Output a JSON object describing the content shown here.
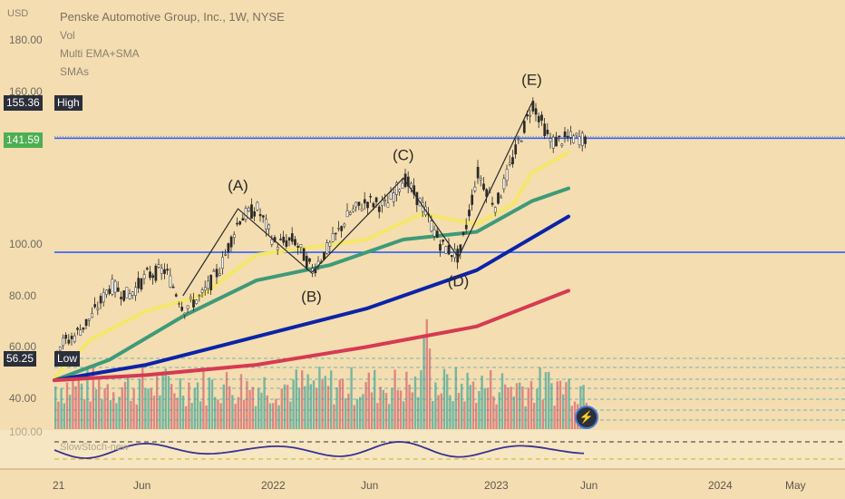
{
  "header": {
    "currency": "USD",
    "title": "Penske Automotive Group, Inc., 1W, NYSE",
    "indicators": [
      "Vol",
      "Multi EMA+SMA",
      "SMAs"
    ]
  },
  "price_tags": {
    "high_value": "155.36",
    "high_label": "High",
    "low_value": "56.25",
    "low_label": "Low",
    "last_value": "141.59"
  },
  "oscillator": {
    "label": "SlowStoch-new",
    "scale_label": "100.00"
  },
  "icons": {
    "replay": "bolt-icon"
  },
  "colors": {
    "background": "#f4ddb0",
    "ema_fast": "#f5e76a",
    "ema_mid": "#3e9a78",
    "sma_100": "#0b23a8",
    "sma_200": "#d63a52",
    "horizontal_line": "#2962ff",
    "wave_lines": "#2a2a2a",
    "oscillator": "#3a3290",
    "volume_up": "#4fa89a",
    "volume_down": "#d86a72"
  },
  "chart_data": {
    "type": "candlestick",
    "title": "Penske Automotive Group, Inc., 1W, NYSE",
    "ylabel": "USD",
    "ylim": [
      30,
      190
    ],
    "y_ticks": [
      "180.00",
      "160.00",
      "100.00",
      "80.00",
      "60.00",
      "40.00"
    ],
    "x_ticks": [
      "21",
      "Jun",
      "2022",
      "Jun",
      "2023",
      "Jun",
      "2024",
      "May"
    ],
    "horizontal_levels": [
      141.59,
      97
    ],
    "wave_labels": [
      {
        "label": "(A)",
        "date": "2021-11",
        "price": 114
      },
      {
        "label": "(B)",
        "date": "2022-03",
        "price": 89
      },
      {
        "label": "(C)",
        "date": "2022-08",
        "price": 126
      },
      {
        "label": "(D)",
        "date": "2022-11",
        "price": 95
      },
      {
        "label": "(E)",
        "date": "2023-03",
        "price": 155.36
      }
    ],
    "price_path": [
      [
        "2021-01",
        60
      ],
      [
        "2021-02",
        64
      ],
      [
        "2021-03",
        72
      ],
      [
        "2021-04",
        84
      ],
      [
        "2021-05",
        80
      ],
      [
        "2021-06",
        88
      ],
      [
        "2021-07",
        90
      ],
      [
        "2021-08",
        75
      ],
      [
        "2021-09",
        80
      ],
      [
        "2021-10",
        91
      ],
      [
        "2021-11",
        110
      ],
      [
        "2021-12",
        114
      ],
      [
        "2022-01",
        100
      ],
      [
        "2022-02",
        102
      ],
      [
        "2022-03",
        90
      ],
      [
        "2022-04",
        100
      ],
      [
        "2022-05",
        112
      ],
      [
        "2022-06",
        117
      ],
      [
        "2022-07",
        115
      ],
      [
        "2022-08",
        126
      ],
      [
        "2022-09",
        115
      ],
      [
        "2022-10",
        100
      ],
      [
        "2022-11",
        95
      ],
      [
        "2022-12",
        128
      ],
      [
        "2023-01",
        115
      ],
      [
        "2023-02",
        135
      ],
      [
        "2023-03",
        155.36
      ],
      [
        "2023-04",
        140
      ],
      [
        "2023-05",
        141.59
      ]
    ],
    "series": [
      {
        "name": "EMA fast",
        "points": [
          [
            "2021-01",
            48
          ],
          [
            "2021-03",
            63
          ],
          [
            "2021-06",
            74
          ],
          [
            "2021-09",
            80
          ],
          [
            "2021-12",
            96
          ],
          [
            "2022-03",
            99
          ],
          [
            "2022-06",
            102
          ],
          [
            "2022-09",
            112
          ],
          [
            "2022-12",
            108
          ],
          [
            "2023-02",
            116
          ],
          [
            "2023-03",
            128
          ],
          [
            "2023-05",
            136
          ]
        ]
      },
      {
        "name": "EMA mid",
        "points": [
          [
            "2021-01",
            47
          ],
          [
            "2021-04",
            55
          ],
          [
            "2021-08",
            72
          ],
          [
            "2021-12",
            86
          ],
          [
            "2022-04",
            92
          ],
          [
            "2022-08",
            102
          ],
          [
            "2022-12",
            105
          ],
          [
            "2023-03",
            117
          ],
          [
            "2023-05",
            122
          ]
        ]
      },
      {
        "name": "SMA 100",
        "points": [
          [
            "2021-01",
            47
          ],
          [
            "2021-06",
            53
          ],
          [
            "2021-12",
            64
          ],
          [
            "2022-06",
            75
          ],
          [
            "2022-12",
            90
          ],
          [
            "2023-05",
            111
          ]
        ]
      },
      {
        "name": "SMA 200",
        "points": [
          [
            "2021-01",
            47
          ],
          [
            "2021-06",
            49
          ],
          [
            "2021-12",
            53
          ],
          [
            "2022-06",
            60
          ],
          [
            "2022-12",
            68
          ],
          [
            "2023-05",
            82
          ]
        ]
      }
    ]
  }
}
